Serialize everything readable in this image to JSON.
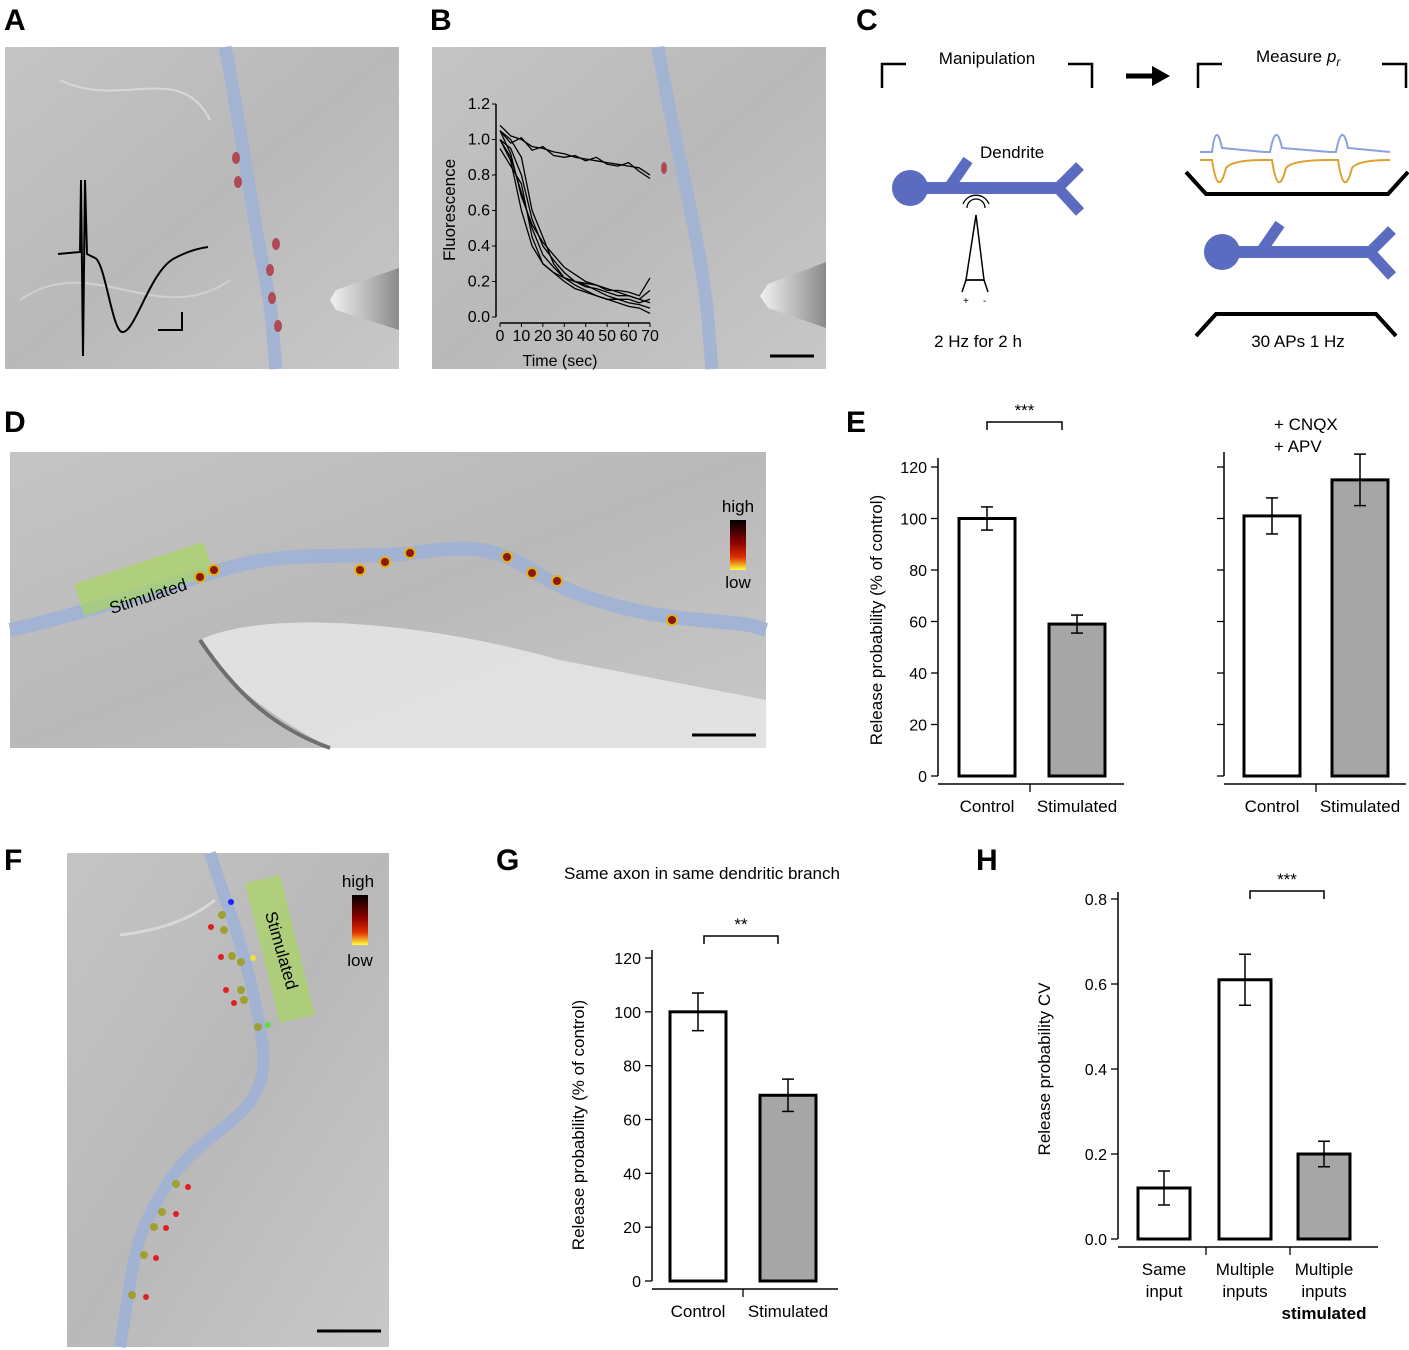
{
  "panels": {
    "A": {
      "label": "A"
    },
    "B": {
      "label": "B"
    },
    "C": {
      "label": "C"
    },
    "D": {
      "label": "D"
    },
    "E": {
      "label": "E"
    },
    "F": {
      "label": "F"
    },
    "G": {
      "label": "G"
    },
    "H": {
      "label": "H"
    }
  },
  "panel_c": {
    "manipulation": "Manipulation",
    "measure": "Measure ",
    "measure_var": "p",
    "measure_sub": "r",
    "dendrite": "Dendrite",
    "stim_protocol": "2 Hz for 2 h",
    "ap_protocol": "30 APs 1 Hz"
  },
  "panel_d": {
    "stimulated": "Stimulated",
    "high": "high",
    "low": "low"
  },
  "panel_f": {
    "stimulated": "Stimulated",
    "high": "high",
    "low": "low"
  },
  "colors": {
    "dendrite": "#5b6bc0",
    "bar_control": "#ffffff",
    "bar_stimulated": "#a6a6a6",
    "overlay_green": "#a8d85a",
    "trace_orange": "#e0a030"
  },
  "chart_data": [
    {
      "id": "B",
      "type": "line",
      "xlabel": "Time (sec)",
      "ylabel": "Fluorescence",
      "xlim": [
        0,
        70
      ],
      "ylim": [
        0,
        1.2
      ],
      "xticks": [
        "0",
        "10",
        "20",
        "30",
        "40",
        "50",
        "60",
        "70"
      ],
      "yticks": [
        "0.0",
        "0.2",
        "0.4",
        "0.6",
        "0.8",
        "1.0",
        "1.2"
      ],
      "x": [
        0,
        5,
        10,
        15,
        20,
        25,
        30,
        35,
        40,
        45,
        50,
        55,
        60,
        65,
        70
      ],
      "series": [
        {
          "values": [
            1.08,
            1.02,
            1.0,
            0.96,
            0.95,
            0.93,
            0.92,
            0.9,
            0.89,
            0.88,
            0.87,
            0.86,
            0.85,
            0.84,
            0.8
          ]
        },
        {
          "values": [
            1.05,
            0.98,
            1.01,
            0.94,
            0.96,
            0.91,
            0.9,
            0.91,
            0.88,
            0.9,
            0.86,
            0.85,
            0.87,
            0.82,
            0.78
          ]
        },
        {
          "values": [
            1.05,
            1.0,
            0.9,
            0.6,
            0.45,
            0.3,
            0.22,
            0.18,
            0.15,
            0.12,
            0.1,
            0.1,
            0.08,
            0.07,
            0.05
          ]
        },
        {
          "values": [
            1.0,
            0.95,
            0.8,
            0.55,
            0.4,
            0.32,
            0.25,
            0.2,
            0.18,
            0.15,
            0.12,
            0.1,
            0.1,
            0.08,
            0.1
          ]
        },
        {
          "values": [
            1.0,
            0.9,
            0.7,
            0.5,
            0.35,
            0.28,
            0.22,
            0.2,
            0.17,
            0.16,
            0.14,
            0.12,
            0.12,
            0.1,
            0.15
          ]
        },
        {
          "values": [
            0.95,
            0.85,
            0.75,
            0.45,
            0.3,
            0.25,
            0.2,
            0.16,
            0.14,
            0.12,
            0.1,
            0.08,
            0.06,
            0.05,
            0.02
          ]
        },
        {
          "values": [
            1.05,
            0.92,
            0.68,
            0.52,
            0.42,
            0.35,
            0.28,
            0.24,
            0.2,
            0.18,
            0.15,
            0.15,
            0.14,
            0.12,
            0.22
          ]
        },
        {
          "values": [
            1.0,
            0.88,
            0.6,
            0.4,
            0.3,
            0.25,
            0.22,
            0.2,
            0.19,
            0.18,
            0.16,
            0.14,
            0.12,
            0.1,
            0.08
          ]
        }
      ]
    },
    {
      "id": "E-left",
      "type": "bar",
      "categories": [
        "Control",
        "Stimulated"
      ],
      "values": [
        100,
        59
      ],
      "errors": [
        4.5,
        3.5
      ],
      "ylabel": "Release probability (% of control)",
      "ylim": [
        0,
        120
      ],
      "yticks": [
        "0",
        "20",
        "40",
        "60",
        "80",
        "100",
        "120"
      ],
      "significance": "***"
    },
    {
      "id": "E-right",
      "type": "bar",
      "categories": [
        "Control",
        "Stimulated"
      ],
      "values": [
        101,
        115
      ],
      "errors": [
        7,
        10
      ],
      "ylim": [
        0,
        120
      ],
      "annotation": [
        "+ CNQX",
        "+ APV"
      ]
    },
    {
      "id": "G",
      "type": "bar",
      "title": "Same axon in same dendritic branch",
      "categories": [
        "Control",
        "Stimulated"
      ],
      "values": [
        100,
        69
      ],
      "errors": [
        7,
        6
      ],
      "ylabel": "Release probability (% of control)",
      "ylim": [
        0,
        120
      ],
      "yticks": [
        "0",
        "20",
        "40",
        "60",
        "80",
        "100",
        "120"
      ],
      "significance": "**"
    },
    {
      "id": "H",
      "type": "bar",
      "categories": [
        [
          "Same",
          "input"
        ],
        [
          "Multiple",
          "inputs"
        ],
        [
          "Multiple",
          "inputs",
          "stimulated"
        ]
      ],
      "values": [
        0.12,
        0.61,
        0.2
      ],
      "errors": [
        0.04,
        0.06,
        0.03
      ],
      "ylabel": "Release probability CV",
      "ylim": [
        0,
        0.8
      ],
      "yticks": [
        "0.0",
        "0.2",
        "0.4",
        "0.6",
        "0.8"
      ],
      "significance": "***"
    }
  ]
}
